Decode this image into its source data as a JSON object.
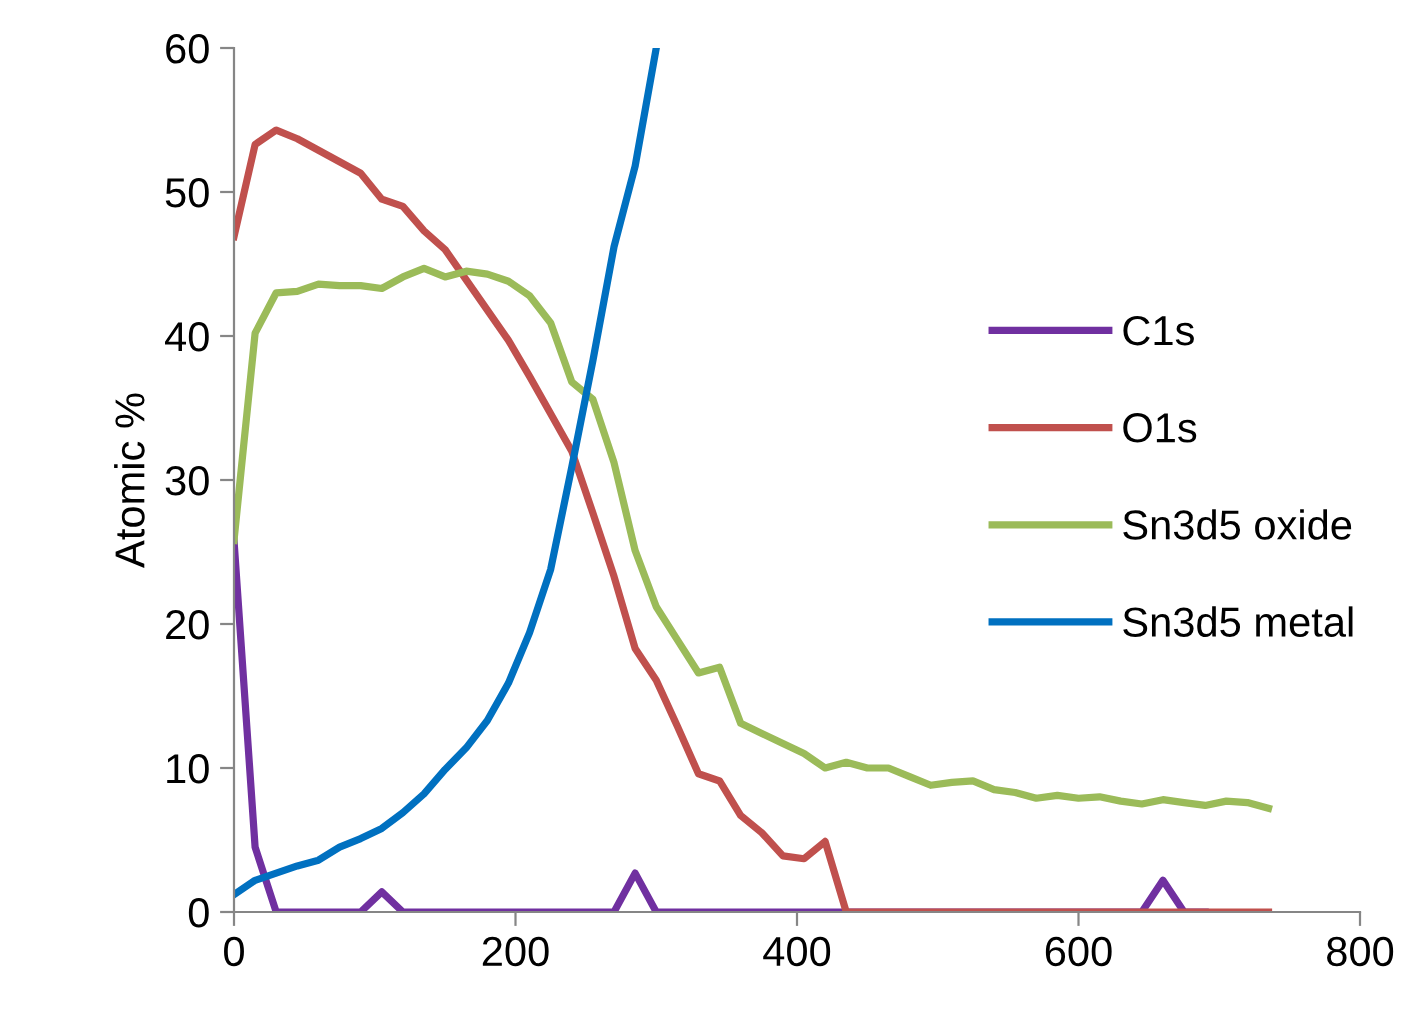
{
  "chart_data": {
    "type": "line",
    "ylabel": "Atomic %",
    "x": [
      0,
      15,
      30,
      45,
      60,
      75,
      90,
      105,
      120,
      135,
      150,
      165,
      180,
      195,
      210,
      225,
      240,
      255,
      270,
      285,
      300,
      315,
      330,
      345,
      360,
      375,
      390,
      405,
      420,
      435,
      450,
      465,
      480,
      495,
      510,
      525,
      540,
      555,
      570,
      585,
      600,
      615,
      630,
      645,
      660,
      675,
      690,
      705,
      720,
      735
    ],
    "series": [
      {
        "name": "C1s",
        "color": "#7030a0",
        "values": [
          25.8,
          4.5,
          0,
          0,
          0,
          0,
          0,
          1.4,
          0,
          0,
          0,
          0,
          0,
          0,
          0,
          0,
          0,
          0,
          0,
          2.7,
          0,
          0,
          0,
          0,
          0,
          0,
          0,
          0,
          0,
          0,
          0,
          0,
          0,
          0,
          0,
          0,
          0,
          0,
          0,
          0,
          0,
          0,
          0,
          0,
          2.2,
          0,
          0,
          null,
          null,
          null
        ]
      },
      {
        "name": "O1s",
        "color": "#c0504d",
        "values": [
          46.9,
          53.3,
          54.3,
          53.7,
          52.9,
          52.1,
          51.3,
          49.5,
          49.0,
          47.3,
          46.0,
          43.9,
          41.8,
          39.7,
          37.2,
          34.6,
          32.0,
          27.7,
          23.3,
          18.3,
          16.1,
          12.9,
          9.6,
          9.1,
          6.7,
          5.5,
          3.9,
          3.7,
          4.9,
          0,
          0,
          0,
          0,
          0,
          0,
          0,
          0,
          0,
          0,
          0,
          0,
          0,
          0,
          0,
          0,
          0,
          0,
          0,
          0,
          0
        ]
      },
      {
        "name": "Sn3d5 oxide",
        "color": "#9bbb59",
        "values": [
          25.8,
          40.2,
          43.0,
          43.1,
          43.6,
          43.5,
          43.5,
          43.3,
          44.1,
          44.7,
          44.1,
          44.5,
          44.3,
          43.8,
          42.8,
          40.9,
          36.8,
          35.6,
          31.2,
          25.1,
          21.2,
          18.9,
          16.6,
          17.0,
          13.1,
          12.4,
          11.7,
          11.0,
          10.0,
          10.4,
          10.0,
          10.0,
          9.4,
          8.8,
          9.0,
          9.1,
          8.5,
          8.3,
          7.9,
          8.1,
          7.9,
          8.0,
          7.7,
          7.5,
          7.8,
          7.6,
          7.4,
          7.7,
          7.6,
          7.2
        ]
      },
      {
        "name": "Sn3d5 metal",
        "color": "#0070c0",
        "values": [
          1.2,
          2.2,
          2.7,
          3.2,
          3.6,
          4.5,
          5.1,
          5.8,
          6.9,
          8.2,
          9.9,
          11.4,
          13.3,
          15.9,
          19.4,
          23.8,
          30.9,
          38.3,
          46.2,
          51.8,
          60,
          null,
          null,
          null,
          null,
          null,
          null,
          null,
          null,
          null,
          null,
          null,
          null,
          null,
          null,
          null,
          null,
          null,
          null,
          null,
          null,
          null,
          null,
          null,
          null,
          null,
          null,
          null,
          null,
          null
        ]
      }
    ],
    "xlim": [
      0,
      800
    ],
    "xticks": [
      0,
      200,
      400,
      600,
      800
    ],
    "ylim": [
      0,
      60
    ],
    "yticks": [
      0,
      10,
      20,
      30,
      40,
      50,
      60
    ],
    "legend": "right",
    "grid": false,
    "marker": "none",
    "line_style": "solid"
  }
}
